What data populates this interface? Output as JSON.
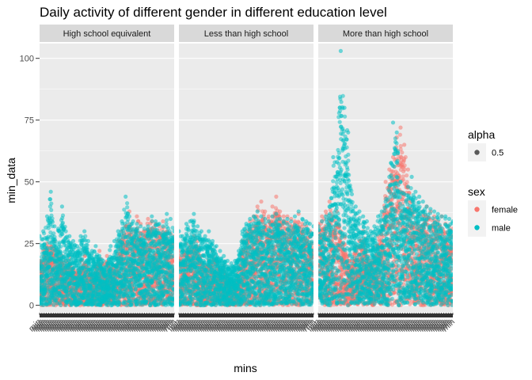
{
  "chart_data": {
    "type": "scatter",
    "title": "Daily activity of different gender in different education level",
    "xlabel": "mins",
    "ylabel": "min_data",
    "ylim": [
      -3,
      106
    ],
    "y_ticks": [
      0,
      25,
      50,
      75,
      100
    ],
    "x_tick_label_repr": "min",
    "x_n_ticks": 1440,
    "facets": [
      "High school equivalent",
      "Less than high school",
      "More than high school"
    ],
    "legend_position": "right",
    "grid": true,
    "legend": {
      "alpha": {
        "title": "alpha",
        "entries": [
          "0.5"
        ],
        "color": "#5a5a5a"
      },
      "sex": {
        "title": "sex",
        "entries": [
          {
            "label": "female",
            "color": "#F8766D"
          },
          {
            "label": "male",
            "color": "#00BFC4"
          }
        ]
      }
    },
    "series": [
      {
        "name": "female",
        "color": "#F8766D",
        "panels": [
          {
            "facet": "High school equivalent",
            "x": [
              0,
              40,
              80,
              120,
              160,
              200,
              240,
              280,
              320,
              360,
              400,
              440,
              480,
              520,
              560,
              600,
              640,
              680,
              720,
              760,
              800,
              840,
              880,
              920,
              960,
              1000,
              1040,
              1080,
              1120,
              1160,
              1200,
              1240,
              1280,
              1320,
              1360,
              1400,
              1439
            ],
            "y": [
              18,
              22,
              25,
              24,
              26,
              22,
              20,
              18,
              20,
              15,
              14,
              18,
              22,
              15,
              12,
              16,
              22,
              17,
              20,
              15,
              16,
              26,
              30,
              32,
              38,
              30,
              36,
              33,
              30,
              35,
              34,
              33,
              32,
              34,
              30,
              29,
              28
            ]
          },
          {
            "facet": "Less than high school",
            "x": [
              0,
              40,
              80,
              120,
              160,
              200,
              240,
              280,
              320,
              360,
              400,
              440,
              480,
              520,
              560,
              600,
              640,
              680,
              720,
              760,
              800,
              840,
              880,
              920,
              960,
              1000,
              1040,
              1080,
              1120,
              1160,
              1200,
              1240,
              1280,
              1320,
              1360,
              1400,
              1439
            ],
            "y": [
              22,
              20,
              25,
              24,
              28,
              26,
              20,
              16,
              20,
              22,
              18,
              14,
              16,
              12,
              10,
              10,
              15,
              26,
              30,
              34,
              36,
              40,
              42,
              38,
              36,
              40,
              44,
              38,
              36,
              36,
              35,
              34,
              37,
              33,
              32,
              30,
              29
            ]
          },
          {
            "facet": "More than high school",
            "x": [
              0,
              40,
              80,
              120,
              160,
              200,
              240,
              280,
              320,
              360,
              400,
              440,
              480,
              520,
              560,
              600,
              640,
              680,
              720,
              760,
              800,
              840,
              880,
              920,
              960,
              1000,
              1040,
              1080,
              1120,
              1160,
              1200,
              1240,
              1280,
              1320,
              1360,
              1400,
              1439
            ],
            "y": [
              33,
              36,
              38,
              42,
              36,
              38,
              30,
              28,
              20,
              18,
              24,
              26,
              30,
              22,
              18,
              20,
              28,
              32,
              50,
              55,
              60,
              68,
              72,
              65,
              55,
              42,
              38,
              36,
              38,
              40,
              38,
              36,
              34,
              36,
              33,
              32,
              31
            ]
          }
        ]
      },
      {
        "name": "male",
        "color": "#00BFC4",
        "panels": [
          {
            "facet": "High school equivalent",
            "x": [
              0,
              40,
              80,
              120,
              160,
              200,
              240,
              280,
              320,
              360,
              400,
              440,
              480,
              520,
              560,
              600,
              640,
              680,
              720,
              760,
              800,
              840,
              880,
              920,
              960,
              1000,
              1040,
              1080,
              1120,
              1160,
              1200,
              1240,
              1280,
              1320,
              1360,
              1400,
              1439
            ],
            "y": [
              28,
              30,
              36,
              46,
              32,
              31,
              40,
              30,
              28,
              26,
              24,
              28,
              30,
              26,
              22,
              24,
              20,
              18,
              17,
              24,
              26,
              30,
              34,
              44,
              36,
              34,
              33,
              32,
              31,
              32,
              36,
              34,
              33,
              32,
              37,
              35,
              30
            ]
          },
          {
            "facet": "Less than high school",
            "x": [
              0,
              40,
              80,
              120,
              160,
              200,
              240,
              280,
              320,
              360,
              400,
              440,
              480,
              520,
              560,
              600,
              640,
              680,
              720,
              760,
              800,
              840,
              880,
              920,
              960,
              1000,
              1040,
              1080,
              1120,
              1160,
              1200,
              1240,
              1280,
              1320,
              1360,
              1400,
              1439
            ],
            "y": [
              30,
              28,
              33,
              34,
              37,
              32,
              30,
              28,
              30,
              26,
              24,
              22,
              20,
              18,
              17,
              18,
              22,
              30,
              33,
              35,
              36,
              38,
              36,
              35,
              34,
              36,
              37,
              35,
              34,
              35,
              34,
              36,
              38,
              35,
              34,
              33,
              32
            ]
          },
          {
            "facet": "More than high school",
            "x": [
              0,
              40,
              80,
              120,
              160,
              200,
              240,
              280,
              320,
              360,
              400,
              440,
              480,
              520,
              560,
              600,
              640,
              680,
              720,
              760,
              800,
              840,
              880,
              920,
              960,
              1000,
              1040,
              1080,
              1120,
              1160,
              1200,
              1240,
              1280,
              1320,
              1360,
              1400,
              1439
            ],
            "y": [
              32,
              34,
              36,
              40,
              60,
              58,
              103,
              80,
              70,
              45,
              40,
              38,
              36,
              34,
              30,
              32,
              36,
              38,
              42,
              52,
              74,
              70,
              50,
              45,
              48,
              52,
              46,
              44,
              42,
              40,
              39,
              38,
              37,
              36,
              36,
              35,
              34
            ]
          }
        ]
      }
    ]
  }
}
